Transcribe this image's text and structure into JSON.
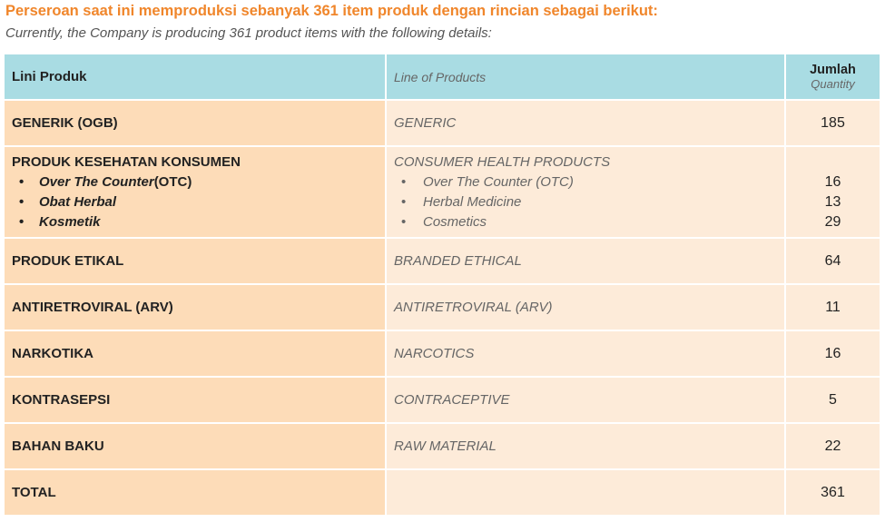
{
  "heading": {
    "title_id": "Perseroan saat ini memproduksi sebanyak 361 item produk dengan rincian sebagai berikut:",
    "title_en": "Currently, the Company is producing 361 product items with the following details:"
  },
  "colors": {
    "title": "#f0862b",
    "header_bg": "#a9dce3",
    "col1_bg": "#fddcb8",
    "col23_bg": "#fdebd9"
  },
  "table": {
    "header": {
      "col1": "Lini Produk",
      "col2": "Line of Products",
      "col3_main": "Jumlah",
      "col3_sub": "Quantity"
    },
    "rows": [
      {
        "id": "GENERIK (OGB)",
        "en": "GENERIC",
        "qty": "185"
      },
      {
        "id": "PRODUK KESEHATAN KONSUMEN",
        "en": "CONSUMER HEALTH PRODUCTS",
        "sub": [
          {
            "id": "Over The Counter",
            "id_suffix": " (OTC)",
            "en": "Over The Counter (OTC)",
            "qty": "16"
          },
          {
            "id": "Obat Herbal",
            "id_suffix": "",
            "en": "Herbal Medicine",
            "qty": "13"
          },
          {
            "id": "Kosmetik",
            "id_suffix": "",
            "en": "Cosmetics",
            "qty": "29"
          }
        ]
      },
      {
        "id": "PRODUK ETIKAL",
        "en": "BRANDED ETHICAL",
        "qty": "64"
      },
      {
        "id": "ANTIRETROVIRAL (ARV)",
        "en": "ANTIRETROVIRAL (ARV)",
        "qty": "11"
      },
      {
        "id": "NARKOTIKA",
        "en": "NARCOTICS",
        "qty": "16"
      },
      {
        "id": "KONTRASEPSI",
        "en": "CONTRACEPTIVE",
        "qty": "5"
      },
      {
        "id": "BAHAN BAKU",
        "en": "RAW MATERIAL",
        "qty": "22"
      },
      {
        "id": "TOTAL",
        "en": "",
        "qty": "361"
      }
    ]
  }
}
